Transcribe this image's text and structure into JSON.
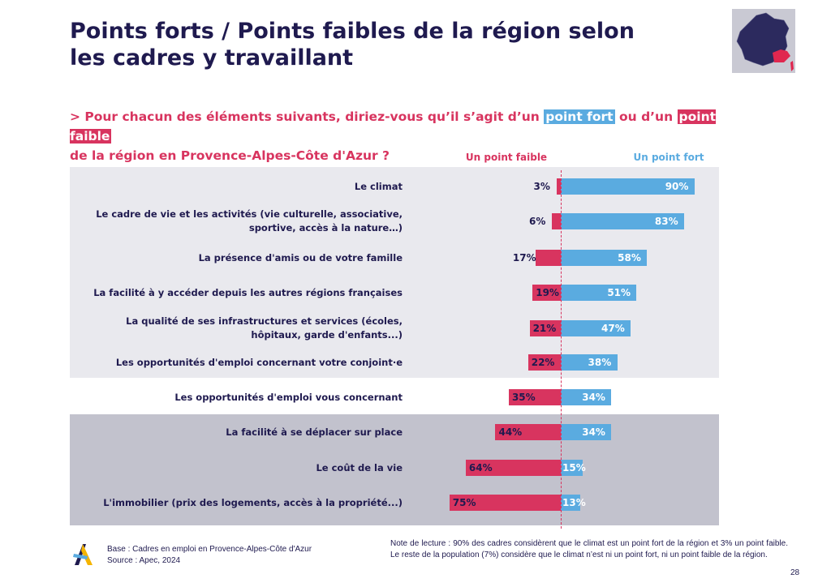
{
  "title_line1": "Points forts / Points faibles de la région selon",
  "title_line2": "les cadres y travaillant",
  "question": {
    "prefix": "> Pour chacun des éléments suivants, diriez-vous qu’il s’agit d’un",
    "strong_label": "point fort",
    "middle": "ou d’un",
    "weak_label": "point faible",
    "line2": "de la région en Provence-Alpes-Côte d'Azur ?"
  },
  "colors": {
    "navy": "#1f1a4f",
    "weak": "#d8345f",
    "strong": "#5aabe0",
    "band_light": "#e9e9ee",
    "band_dark": "#c2c2cd"
  },
  "map_icon": "france-map-icon",
  "logo_icon": "apec-logo-icon",
  "chart_data": {
    "type": "bar",
    "orientation": "horizontal-diverging",
    "legend": {
      "weak": "Un point faible",
      "strong": "Un point fort"
    },
    "categories": [
      "Le climat",
      "Le cadre de vie et les activités (vie culturelle, associative, sportive, accès à la nature…)",
      "La présence d'amis ou de votre famille",
      "La facilité à y accéder depuis les autres régions françaises",
      "La qualité de ses infrastructures et services (écoles, hôpitaux, garde d'enfants...)",
      "Les opportunités d'emploi concernant votre conjoint·e",
      "Les opportunités d'emploi vous concernant",
      "La facilité à se déplacer sur place",
      "Le coût de la vie",
      "L'immobilier (prix des logements, accès à la propriété...)"
    ],
    "series": [
      {
        "name": "Un point faible",
        "values": [
          3,
          6,
          17,
          19,
          21,
          22,
          35,
          44,
          64,
          75
        ]
      },
      {
        "name": "Un point fort",
        "values": [
          90,
          83,
          58,
          51,
          47,
          38,
          34,
          34,
          15,
          13
        ]
      }
    ],
    "value_labels": {
      "weak": [
        "3%",
        "6%",
        "17%",
        "19%",
        "21%",
        "22%",
        "35%",
        "44%",
        "64%",
        "75%"
      ],
      "strong": [
        "90%",
        "83%",
        "58%",
        "51%",
        "47%",
        "38%",
        "34%",
        "34%",
        "15%",
        "13%"
      ]
    },
    "unit": "%"
  },
  "footer": {
    "base": "Base : Cadres en emploi en Provence-Alpes-Côte d'Azur",
    "source": "Source : Apec, 2024",
    "note": "Note de lecture : 90% des cadres considèrent que le climat est un point fort de la région et 3% un point faible. Le reste de la population (7%) considère que le climat n’est ni un point fort, ni un point faible de la région.",
    "page": "28"
  }
}
